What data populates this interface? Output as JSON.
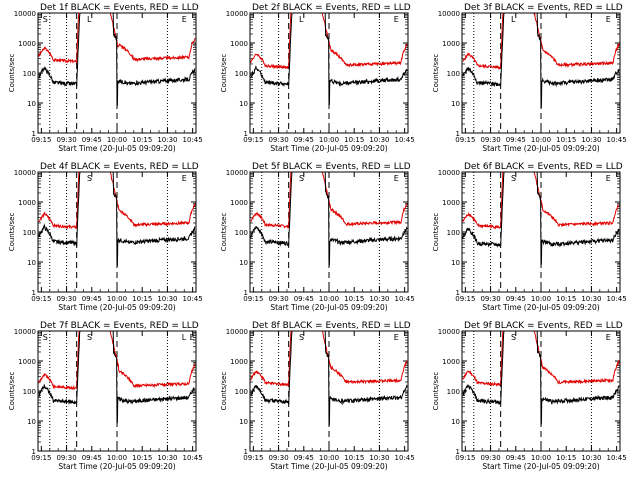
{
  "chart_data": [
    {
      "type": "line",
      "title": "Det 1f BLACK = Events, RED = LLD",
      "xlabel": "Start Time (20-Jul-05 09:09:20)",
      "ylabel": "Counts/sec",
      "yscale": "log",
      "ylim": [
        1,
        10000
      ],
      "xlim_label": [
        "09:13",
        "10:47"
      ],
      "xtick_labels": [
        "09:15",
        "09:30",
        "09:45",
        "10:00",
        "10:15",
        "10:30",
        "10:45"
      ],
      "ytick_labels": [
        "1",
        "10",
        "100",
        "1000",
        "10000"
      ],
      "events_baseline": 40,
      "lld_baseline": 250,
      "sub_labels": [
        "S",
        "L",
        "E"
      ]
    },
    {
      "type": "line",
      "title": "Det 2f BLACK = Events, RED = LLD",
      "xlabel": "Start Time (20-Jul-05 09:09:20)",
      "ylabel": "Counts/sec",
      "yscale": "log",
      "ylim": [
        1,
        10000
      ],
      "xtick_labels": [
        "09:15",
        "09:30",
        "09:45",
        "10:00",
        "10:15",
        "10:30",
        "10:45"
      ],
      "ytick_labels": [
        "1",
        "10",
        "100",
        "1000",
        "10000"
      ],
      "events_baseline": 40,
      "lld_baseline": 160,
      "sub_labels": [
        "L",
        "E"
      ]
    },
    {
      "type": "line",
      "title": "Det 3f BLACK = Events, RED = LLD",
      "xlabel": "Start Time (20-Jul-05 09:09:20)",
      "ylabel": "Counts/sec",
      "yscale": "log",
      "ylim": [
        1,
        10000
      ],
      "xtick_labels": [
        "09:15",
        "09:30",
        "09:45",
        "10:00",
        "10:15",
        "10:30",
        "10:45"
      ],
      "ytick_labels": [
        "1",
        "10",
        "100",
        "1000",
        "10000"
      ],
      "events_baseline": 40,
      "lld_baseline": 160,
      "sub_labels": [
        "L",
        "E"
      ]
    },
    {
      "type": "line",
      "title": "Det 4f BLACK = Events, RED = LLD",
      "xlabel": "Start Time (20-Jul-05 09:09:20)",
      "ylabel": "Counts/sec",
      "yscale": "log",
      "ylim": [
        1,
        10000
      ],
      "xtick_labels": [
        "09:15",
        "09:30",
        "09:45",
        "10:00",
        "10:15",
        "10:30",
        "10:45"
      ],
      "ytick_labels": [
        "1",
        "10",
        "100",
        "1000",
        "10000"
      ],
      "events_baseline": 40,
      "lld_baseline": 150,
      "sub_labels": [
        "S",
        "E"
      ]
    },
    {
      "type": "line",
      "title": "Det 5f BLACK = Events, RED = LLD",
      "xlabel": "Start Time (20-Jul-05 09:09:20)",
      "ylabel": "Counts/sec",
      "yscale": "log",
      "ylim": [
        1,
        10000
      ],
      "xtick_labels": [
        "09:15",
        "09:30",
        "09:45",
        "10:00",
        "10:15",
        "10:30",
        "10:45"
      ],
      "ytick_labels": [
        "1",
        "10",
        "100",
        "1000",
        "10000"
      ],
      "events_baseline": 40,
      "lld_baseline": 160,
      "sub_labels": [
        "S",
        "E"
      ]
    },
    {
      "type": "line",
      "title": "Det 6f BLACK = Events, RED = LLD",
      "xlabel": "Start Time (20-Jul-05 09:09:20)",
      "ylabel": "Counts/sec",
      "yscale": "log",
      "ylim": [
        1,
        10000
      ],
      "xtick_labels": [
        "09:15",
        "09:30",
        "09:45",
        "10:00",
        "10:15",
        "10:30",
        "10:45"
      ],
      "ytick_labels": [
        "1",
        "10",
        "100",
        "1000",
        "10000"
      ],
      "events_baseline": 35,
      "lld_baseline": 150,
      "sub_labels": [
        "S",
        "E"
      ]
    },
    {
      "type": "line",
      "title": "Det 7f BLACK = Events, RED = LLD",
      "xlabel": "Start Time (20-Jul-05 09:09:20)",
      "ylabel": "Counts/sec",
      "yscale": "log",
      "ylim": [
        1,
        10000
      ],
      "xtick_labels": [
        "09:15",
        "09:30",
        "09:45",
        "10:00",
        "10:15",
        "10:30",
        "10:45"
      ],
      "ytick_labels": [
        "1",
        "10",
        "100",
        "1000",
        "10000"
      ],
      "events_baseline": 40,
      "lld_baseline": 130,
      "sub_labels": [
        "S",
        "S",
        "L",
        "E"
      ]
    },
    {
      "type": "line",
      "title": "Det 8f BLACK = Events, RED = LLD",
      "xlabel": "Start Time (20-Jul-05 09:09:20)",
      "ylabel": "Counts/sec",
      "yscale": "log",
      "ylim": [
        1,
        10000
      ],
      "xtick_labels": [
        "09:15",
        "09:30",
        "09:45",
        "10:00",
        "10:15",
        "10:30",
        "10:45"
      ],
      "ytick_labels": [
        "1",
        "10",
        "100",
        "1000",
        "10000"
      ],
      "events_baseline": 40,
      "lld_baseline": 170,
      "sub_labels": [
        "S",
        "E"
      ]
    },
    {
      "type": "line",
      "title": "Det 9f BLACK = Events, RED = LLD",
      "xlabel": "Start Time (20-Jul-05 09:09:20)",
      "ylabel": "Counts/sec",
      "yscale": "log",
      "ylim": [
        1,
        10000
      ],
      "xtick_labels": [
        "09:15",
        "09:30",
        "09:45",
        "10:00",
        "10:15",
        "10:30",
        "10:45"
      ],
      "ytick_labels": [
        "1",
        "10",
        "100",
        "1000",
        "10000"
      ],
      "events_baseline": 40,
      "lld_baseline": 170,
      "sub_labels": [
        "S",
        "E"
      ]
    }
  ],
  "colors": {
    "events": "#000000",
    "lld": "#e00000"
  }
}
